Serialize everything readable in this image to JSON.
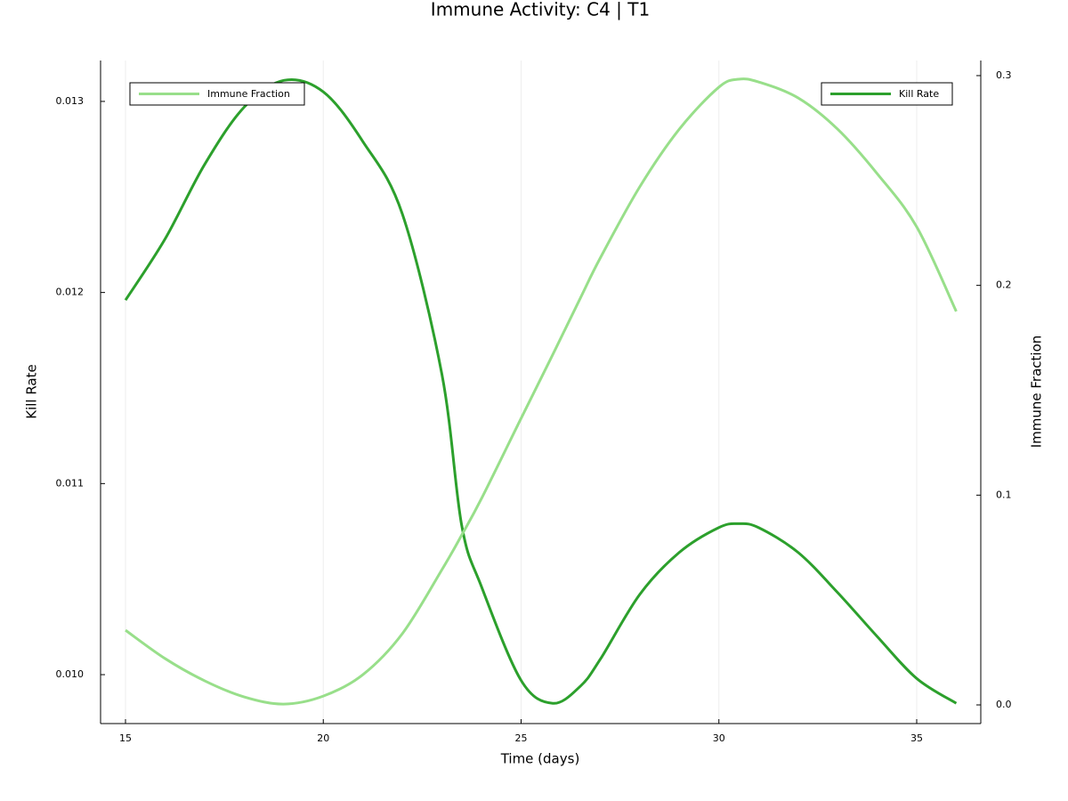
{
  "chart_data": {
    "type": "line",
    "title": "Immune Activity: C4 | T1",
    "x_label": "Time (days)",
    "y_label": "Kill Rate",
    "y2_label": "Immune Fraction",
    "x": [
      15,
      16,
      17,
      18,
      19,
      20,
      21,
      22,
      23,
      23.5,
      24,
      25,
      25.8,
      26.5,
      27,
      28,
      29,
      30,
      30.5,
      31,
      32,
      33,
      34,
      35,
      36
    ],
    "series": [
      {
        "name": "Kill Rate",
        "color": "#2ca02c",
        "legend": "top-right",
        "values": [
          0.01196,
          0.01228,
          0.01267,
          0.01297,
          0.01311,
          0.01305,
          0.01279,
          0.01241,
          0.01157,
          0.01078,
          0.01046,
          0.00997,
          0.00985,
          0.00994,
          0.01008,
          0.01042,
          0.01064,
          0.01077,
          0.01079,
          0.01077,
          0.01064,
          0.01043,
          0.0102,
          0.00998,
          0.00985
        ]
      },
      {
        "name": "Immune Fraction",
        "color": "#98df8a",
        "axis": "y2",
        "legend": "top-left",
        "values": [
          0.0356,
          0.0221,
          0.0115,
          0.0038,
          0.0004,
          0.0042,
          0.0144,
          0.034,
          0.0645,
          0.081,
          0.0984,
          0.1366,
          0.167,
          0.194,
          0.213,
          0.247,
          0.2745,
          0.2945,
          0.2983,
          0.297,
          0.2894,
          0.2745,
          0.2533,
          0.2279,
          0.1876
        ]
      }
    ],
    "xlim": [
      14.37,
      36.62
    ],
    "xticks": [
      15,
      20,
      25,
      30,
      35
    ],
    "ylim": [
      0.009744,
      0.013214
    ],
    "yticks": [
      {
        "value": 0.01,
        "label": "0.010"
      },
      0.011,
      0.012,
      0.013
    ],
    "y2lim": [
      -0.0089,
      0.3072
    ],
    "y2ticks": [
      {
        "value": 0,
        "label": "0.0"
      },
      0.1,
      0.2,
      0.3
    ],
    "grid": true
  }
}
